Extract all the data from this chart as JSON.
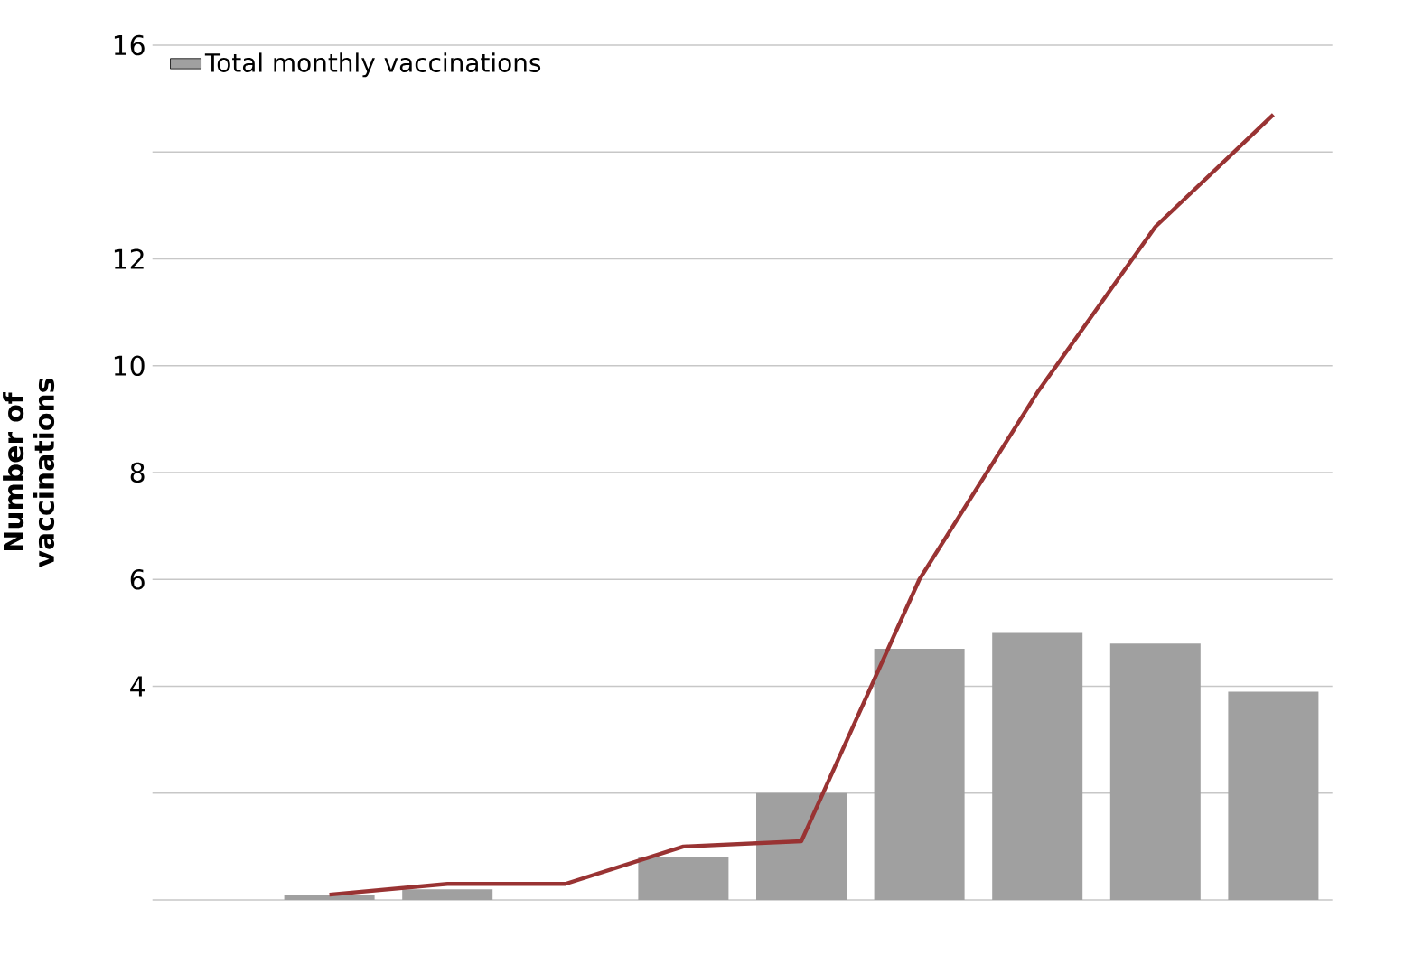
{
  "chart_data": {
    "type": "bar",
    "ylabel": "Number of vaccinations",
    "categories": [
      null,
      null,
      null,
      null,
      null,
      null,
      null,
      null,
      null,
      null
    ],
    "series": [
      {
        "name": "Total monthly vaccinations",
        "color": "#a0a0a0",
        "values": [
          null,
          0.1,
          0.2,
          0.0,
          0.8,
          2.0,
          4.7,
          5.0,
          4.8,
          3.9
        ]
      },
      {
        "type": "line",
        "color": "#993333",
        "values": [
          null,
          0.1,
          0.3,
          0.3,
          1.0,
          1.1,
          6.0,
          9.5,
          12.6,
          14.7
        ]
      }
    ],
    "ylim": [
      0,
      16
    ],
    "yticks": [
      {
        "value": 0,
        "label": null
      },
      {
        "value": 2,
        "label": null
      },
      4,
      6,
      8,
      10,
      12,
      {
        "value": 14,
        "label": null
      },
      16
    ],
    "grid": "y",
    "legend": "top left"
  }
}
